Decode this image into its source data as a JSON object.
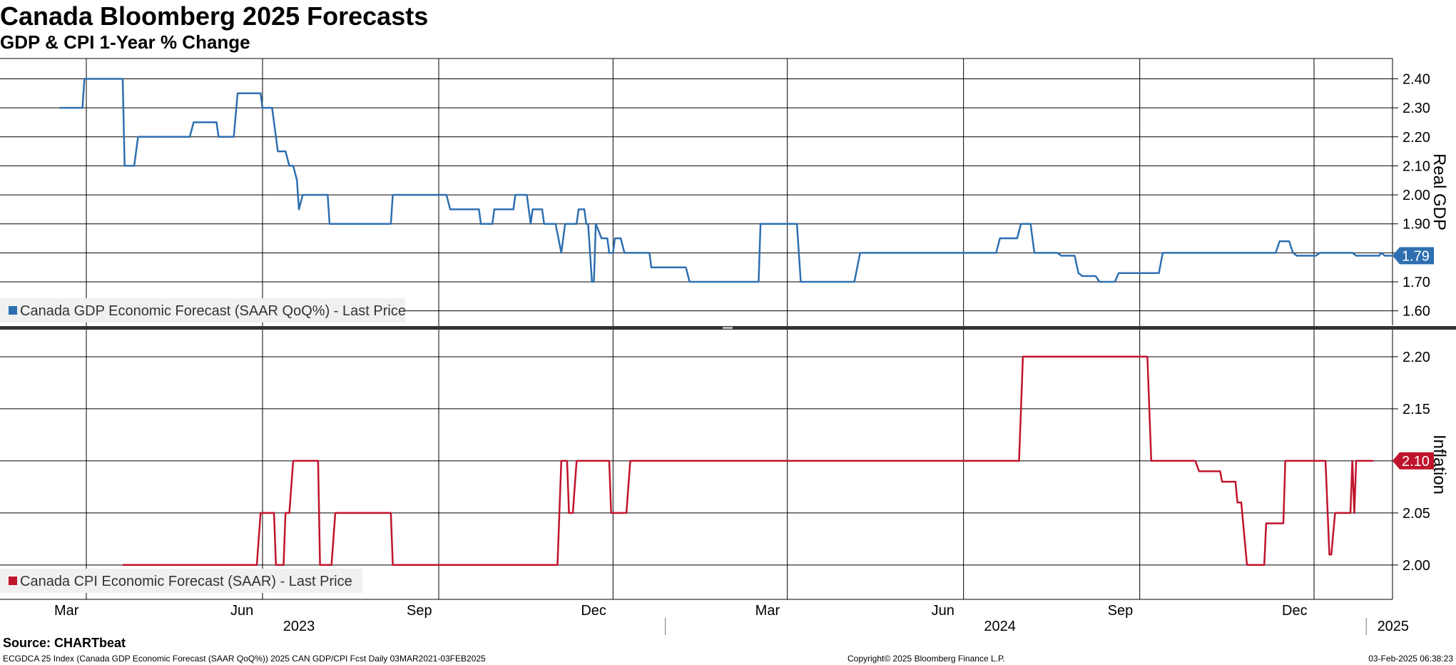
{
  "header": {
    "title": "Canada Bloomberg 2025 Forecasts",
    "subtitle": "GDP & CPI 1-Year % Change"
  },
  "footer": {
    "source": "Source: CHARTbeat",
    "description": "ECGDCA 25 Index (Canada GDP Economic Forecast (SAAR QoQ%)) 2025 CAN GDP/CPI Fcst  Daily 03MAR2021-03FEB2025",
    "copyright": "Copyright© 2025 Bloomberg Finance L.P.",
    "timestamp": "03-Feb-2025 06:38:23"
  },
  "x_axis": {
    "months": [
      {
        "label": "Mar",
        "date": "2023-03"
      },
      {
        "label": "Jun",
        "date": "2023-06"
      },
      {
        "label": "Sep",
        "date": "2023-09"
      },
      {
        "label": "Dec",
        "date": "2023-12"
      },
      {
        "label": "Mar",
        "date": "2024-03"
      },
      {
        "label": "Jun",
        "date": "2024-06"
      },
      {
        "label": "Sep",
        "date": "2024-09"
      },
      {
        "label": "Dec",
        "date": "2024-12"
      }
    ],
    "years": [
      "2023",
      "2024",
      "2025"
    ]
  },
  "colors": {
    "gdp": "#2e6fb0",
    "cpi": "#c0142c",
    "grid": "#000000",
    "legend_bg": "#f0f0f0",
    "divider": "#333333"
  },
  "chart_data": [
    {
      "type": "line",
      "legend": "Canada GDP Economic Forecast (SAAR QoQ%) - Last Price",
      "ylabel": "Real GDP",
      "yticks": [
        "2.40",
        "2.30",
        "2.20",
        "2.10",
        "2.00",
        "1.90",
        "1.80",
        "1.70",
        "1.60"
      ],
      "ylim": [
        1.55,
        2.47
      ],
      "last_value": "1.79",
      "series": [
        {
          "values": [
            [
              "2023-02-15",
              2.3
            ],
            [
              "2023-02-27",
              2.3
            ],
            [
              "2023-02-28",
              2.4
            ],
            [
              "2023-03-20",
              2.4
            ],
            [
              "2023-03-21",
              2.1
            ],
            [
              "2023-03-26",
              2.1
            ],
            [
              "2023-03-28",
              2.2
            ],
            [
              "2023-04-24",
              2.2
            ],
            [
              "2023-04-26",
              2.25
            ],
            [
              "2023-05-08",
              2.25
            ],
            [
              "2023-05-09",
              2.2
            ],
            [
              "2023-05-17",
              2.2
            ],
            [
              "2023-05-19",
              2.35
            ],
            [
              "2023-05-31",
              2.35
            ],
            [
              "2023-06-01",
              2.3
            ],
            [
              "2023-06-06",
              2.3
            ],
            [
              "2023-06-09",
              2.15
            ],
            [
              "2023-06-13",
              2.15
            ],
            [
              "2023-06-15",
              2.1
            ],
            [
              "2023-06-17",
              2.1
            ],
            [
              "2023-06-19",
              2.05
            ],
            [
              "2023-06-20",
              1.95
            ],
            [
              "2023-06-22",
              2.0
            ],
            [
              "2023-07-05",
              2.0
            ],
            [
              "2023-07-06",
              1.9
            ],
            [
              "2023-08-07",
              1.9
            ],
            [
              "2023-08-08",
              2.0
            ],
            [
              "2023-09-05",
              2.0
            ],
            [
              "2023-09-07",
              1.95
            ],
            [
              "2023-09-22",
              1.95
            ],
            [
              "2023-09-23",
              1.9
            ],
            [
              "2023-09-29",
              1.9
            ],
            [
              "2023-09-30",
              1.95
            ],
            [
              "2023-10-10",
              1.95
            ],
            [
              "2023-10-11",
              2.0
            ],
            [
              "2023-10-17",
              2.0
            ],
            [
              "2023-10-19",
              1.9
            ],
            [
              "2023-10-20",
              1.95
            ],
            [
              "2023-10-25",
              1.95
            ],
            [
              "2023-10-26",
              1.9
            ],
            [
              "2023-11-01",
              1.9
            ],
            [
              "2023-11-04",
              1.8
            ],
            [
              "2023-11-06",
              1.9
            ],
            [
              "2023-11-12",
              1.9
            ],
            [
              "2023-11-13",
              1.95
            ],
            [
              "2023-11-16",
              1.95
            ],
            [
              "2023-11-17",
              1.9
            ],
            [
              "2023-11-18",
              1.9
            ],
            [
              "2023-11-20",
              1.7
            ],
            [
              "2023-11-21",
              1.7
            ],
            [
              "2023-11-22",
              1.9
            ],
            [
              "2023-11-25",
              1.85
            ],
            [
              "2023-11-28",
              1.85
            ],
            [
              "2023-11-29",
              1.8
            ],
            [
              "2023-12-01",
              1.8
            ],
            [
              "2023-12-02",
              1.85
            ],
            [
              "2023-12-05",
              1.85
            ],
            [
              "2023-12-07",
              1.8
            ],
            [
              "2023-12-20",
              1.8
            ],
            [
              "2023-12-21",
              1.75
            ],
            [
              "2024-01-08",
              1.75
            ],
            [
              "2024-01-10",
              1.7
            ],
            [
              "2024-02-15",
              1.7
            ],
            [
              "2024-02-16",
              1.9
            ],
            [
              "2024-03-06",
              1.9
            ],
            [
              "2024-03-08",
              1.7
            ],
            [
              "2024-04-05",
              1.7
            ],
            [
              "2024-04-08",
              1.8
            ],
            [
              "2024-06-18",
              1.8
            ],
            [
              "2024-06-20",
              1.85
            ],
            [
              "2024-06-29",
              1.85
            ],
            [
              "2024-07-01",
              1.9
            ],
            [
              "2024-07-06",
              1.9
            ],
            [
              "2024-07-08",
              1.8
            ],
            [
              "2024-07-20",
              1.8
            ],
            [
              "2024-07-22",
              1.79
            ],
            [
              "2024-07-29",
              1.79
            ],
            [
              "2024-07-31",
              1.73
            ],
            [
              "2024-08-02",
              1.72
            ],
            [
              "2024-08-09",
              1.72
            ],
            [
              "2024-08-11",
              1.7
            ],
            [
              "2024-08-19",
              1.7
            ],
            [
              "2024-08-21",
              1.73
            ],
            [
              "2024-09-11",
              1.73
            ],
            [
              "2024-09-13",
              1.8
            ],
            [
              "2024-11-11",
              1.8
            ],
            [
              "2024-11-13",
              1.84
            ],
            [
              "2024-11-18",
              1.84
            ],
            [
              "2024-11-20",
              1.8
            ],
            [
              "2024-11-22",
              1.79
            ],
            [
              "2024-12-02",
              1.79
            ],
            [
              "2024-12-04",
              1.8
            ],
            [
              "2024-12-21",
              1.8
            ],
            [
              "2024-12-23",
              1.79
            ],
            [
              "2025-01-04",
              1.79
            ],
            [
              "2025-01-05",
              1.8
            ],
            [
              "2025-01-07",
              1.79
            ],
            [
              "2025-01-14",
              1.79
            ]
          ]
        }
      ]
    },
    {
      "type": "line",
      "legend": "Canada CPI Economic Forecast (SAAR) - Last Price",
      "ylabel": "Inflation",
      "yticks": [
        "2.20",
        "2.15",
        "2.10",
        "2.05",
        "2.00"
      ],
      "ylim": [
        1.967,
        2.226
      ],
      "last_value": "2.10",
      "series": [
        {
          "values": [
            [
              "2023-03-20",
              2.0
            ],
            [
              "2023-05-29",
              2.0
            ],
            [
              "2023-05-31",
              2.05
            ],
            [
              "2023-06-07",
              2.05
            ],
            [
              "2023-06-08",
              2.0
            ],
            [
              "2023-06-12",
              2.0
            ],
            [
              "2023-06-13",
              2.05
            ],
            [
              "2023-06-15",
              2.05
            ],
            [
              "2023-06-17",
              2.1
            ],
            [
              "2023-06-30",
              2.1
            ],
            [
              "2023-07-01",
              2.0
            ],
            [
              "2023-07-07",
              2.0
            ],
            [
              "2023-07-09",
              2.05
            ],
            [
              "2023-08-07",
              2.05
            ],
            [
              "2023-08-08",
              2.0
            ],
            [
              "2023-11-02",
              2.0
            ],
            [
              "2023-11-04",
              2.1
            ],
            [
              "2023-11-07",
              2.1
            ],
            [
              "2023-11-08",
              2.05
            ],
            [
              "2023-11-10",
              2.05
            ],
            [
              "2023-11-12",
              2.1
            ],
            [
              "2023-11-29",
              2.1
            ],
            [
              "2023-11-30",
              2.05
            ],
            [
              "2023-12-08",
              2.05
            ],
            [
              "2023-12-10",
              2.1
            ],
            [
              "2024-06-30",
              2.1
            ],
            [
              "2024-07-02",
              2.2
            ],
            [
              "2024-09-05",
              2.2
            ],
            [
              "2024-09-07",
              2.1
            ],
            [
              "2024-09-30",
              2.1
            ],
            [
              "2024-10-02",
              2.09
            ],
            [
              "2024-10-13",
              2.09
            ],
            [
              "2024-10-14",
              2.08
            ],
            [
              "2024-10-21",
              2.08
            ],
            [
              "2024-10-22",
              2.06
            ],
            [
              "2024-10-24",
              2.06
            ],
            [
              "2024-10-27",
              2.0
            ],
            [
              "2024-11-05",
              2.0
            ],
            [
              "2024-11-06",
              2.04
            ],
            [
              "2024-11-15",
              2.04
            ],
            [
              "2024-11-16",
              2.1
            ],
            [
              "2024-12-07",
              2.1
            ],
            [
              "2024-12-09",
              2.01
            ],
            [
              "2024-12-10",
              2.01
            ],
            [
              "2024-12-12",
              2.05
            ],
            [
              "2024-12-20",
              2.05
            ],
            [
              "2024-12-21",
              2.1
            ],
            [
              "2024-12-22",
              2.05
            ],
            [
              "2024-12-23",
              2.1
            ],
            [
              "2025-01-01",
              2.1
            ]
          ]
        }
      ]
    }
  ]
}
